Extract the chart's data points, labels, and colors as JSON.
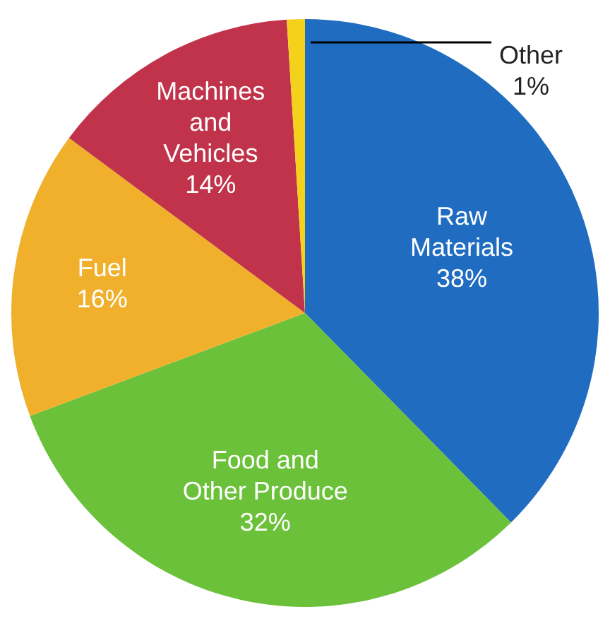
{
  "chart_data": {
    "type": "pie",
    "categories": [
      "Raw Materials",
      "Food and Other Produce",
      "Fuel",
      "Machines and Vehicles",
      "Other"
    ],
    "values": [
      38,
      32,
      16,
      14,
      1
    ],
    "value_labels": [
      "38%",
      "32%",
      "16%",
      "14%",
      "1%"
    ],
    "colors": [
      "#1f6cc0",
      "#6cc13a",
      "#f0b02c",
      "#c0334a",
      "#f4d21c"
    ]
  }
}
